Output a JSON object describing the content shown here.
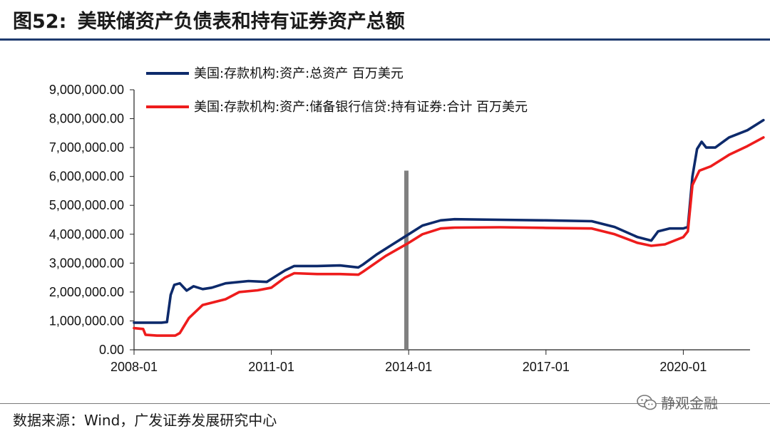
{
  "header": {
    "figure_label": "图52:",
    "title": "美联储资产负债表和持有证券资产总额"
  },
  "footer": {
    "source": "数据来源：Wind，广发证券发展研究中心",
    "watermark": "静观金融",
    "watermark_icon": "wechat-icon"
  },
  "colors": {
    "series_total": "#0d2a6b",
    "series_securities": "#ee1c1c",
    "marker": "#808080",
    "header_rule": "#1f3b6e"
  },
  "chart_data": {
    "type": "line",
    "title": "美联储资产负债表和持有证券资产总额",
    "xlabel": "",
    "ylabel": "",
    "x_range": [
      2008.0,
      2021.9
    ],
    "ylim": [
      0,
      9000000
    ],
    "y_ticks": [
      0,
      1000000,
      2000000,
      3000000,
      4000000,
      5000000,
      6000000,
      7000000,
      8000000,
      9000000
    ],
    "y_tick_labels": [
      "0.00",
      "1,000,000.00",
      "2,000,000.00",
      "3,000,000.00",
      "4,000,000.00",
      "5,000,000.00",
      "6,000,000.00",
      "7,000,000.00",
      "8,000,000.00",
      "9,000,000.00"
    ],
    "x_ticks": [
      2008.0,
      2011.0,
      2014.0,
      2017.0,
      2020.0
    ],
    "x_tick_labels": [
      "2008-01",
      "2011-01",
      "2014-01",
      "2017-01",
      "2020-01"
    ],
    "grid": false,
    "legend_position": "top-left",
    "vertical_marker": {
      "x": 2013.95,
      "y_top": 6200000
    },
    "series": [
      {
        "name": "美国:存款机构:资产:总资产 百万美元",
        "points": [
          [
            2008.0,
            940000
          ],
          [
            2008.6,
            940000
          ],
          [
            2008.72,
            960000
          ],
          [
            2008.8,
            1900000
          ],
          [
            2008.88,
            2250000
          ],
          [
            2009.0,
            2300000
          ],
          [
            2009.15,
            2050000
          ],
          [
            2009.3,
            2200000
          ],
          [
            2009.5,
            2100000
          ],
          [
            2009.7,
            2150000
          ],
          [
            2010.0,
            2300000
          ],
          [
            2010.5,
            2380000
          ],
          [
            2010.9,
            2350000
          ],
          [
            2011.0,
            2450000
          ],
          [
            2011.3,
            2750000
          ],
          [
            2011.5,
            2900000
          ],
          [
            2012.0,
            2900000
          ],
          [
            2012.5,
            2920000
          ],
          [
            2012.9,
            2850000
          ],
          [
            2013.0,
            2950000
          ],
          [
            2013.3,
            3300000
          ],
          [
            2013.6,
            3600000
          ],
          [
            2014.0,
            4000000
          ],
          [
            2014.3,
            4300000
          ],
          [
            2014.7,
            4480000
          ],
          [
            2015.0,
            4520000
          ],
          [
            2016.0,
            4500000
          ],
          [
            2017.0,
            4480000
          ],
          [
            2018.0,
            4450000
          ],
          [
            2018.5,
            4250000
          ],
          [
            2019.0,
            3900000
          ],
          [
            2019.3,
            3780000
          ],
          [
            2019.45,
            4100000
          ],
          [
            2019.7,
            4200000
          ],
          [
            2020.0,
            4200000
          ],
          [
            2020.1,
            4250000
          ],
          [
            2020.2,
            6000000
          ],
          [
            2020.3,
            6950000
          ],
          [
            2020.4,
            7200000
          ],
          [
            2020.5,
            7000000
          ],
          [
            2020.7,
            7000000
          ],
          [
            2021.0,
            7350000
          ],
          [
            2021.4,
            7600000
          ],
          [
            2021.75,
            7950000
          ]
        ]
      },
      {
        "name": "美国:存款机构:资产:储备银行信贷:持有证券:合计 百万美元",
        "points": [
          [
            2008.0,
            750000
          ],
          [
            2008.2,
            720000
          ],
          [
            2008.25,
            520000
          ],
          [
            2008.5,
            490000
          ],
          [
            2008.9,
            490000
          ],
          [
            2009.0,
            580000
          ],
          [
            2009.2,
            1100000
          ],
          [
            2009.5,
            1550000
          ],
          [
            2010.0,
            1750000
          ],
          [
            2010.3,
            2000000
          ],
          [
            2010.7,
            2060000
          ],
          [
            2011.0,
            2150000
          ],
          [
            2011.3,
            2500000
          ],
          [
            2011.5,
            2650000
          ],
          [
            2012.0,
            2620000
          ],
          [
            2012.5,
            2620000
          ],
          [
            2012.9,
            2600000
          ],
          [
            2013.0,
            2700000
          ],
          [
            2013.5,
            3250000
          ],
          [
            2014.0,
            3700000
          ],
          [
            2014.3,
            4000000
          ],
          [
            2014.7,
            4200000
          ],
          [
            2015.0,
            4230000
          ],
          [
            2016.0,
            4240000
          ],
          [
            2017.0,
            4220000
          ],
          [
            2018.0,
            4200000
          ],
          [
            2018.5,
            4000000
          ],
          [
            2019.0,
            3700000
          ],
          [
            2019.3,
            3600000
          ],
          [
            2019.6,
            3650000
          ],
          [
            2020.0,
            3900000
          ],
          [
            2020.1,
            4100000
          ],
          [
            2020.2,
            5700000
          ],
          [
            2020.35,
            6200000
          ],
          [
            2020.6,
            6350000
          ],
          [
            2021.0,
            6750000
          ],
          [
            2021.4,
            7050000
          ],
          [
            2021.75,
            7350000
          ]
        ]
      }
    ]
  }
}
